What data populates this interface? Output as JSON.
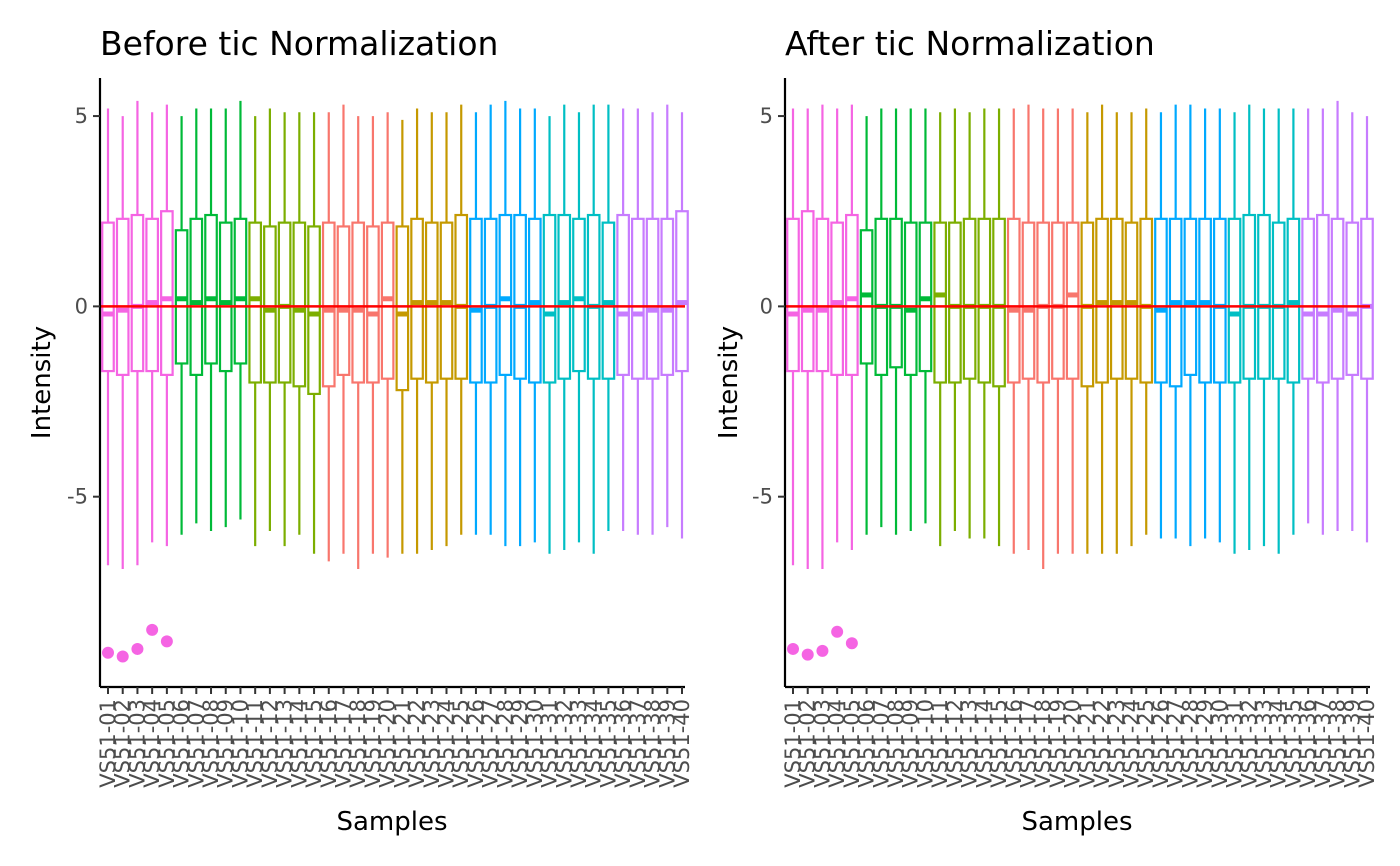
{
  "chart_data": [
    {
      "type": "boxplot",
      "title": "Before tic Normalization",
      "xlabel": "Samples",
      "ylabel": "Intensity",
      "ylim": [
        -10,
        6
      ],
      "yticks": [
        -5,
        0,
        5
      ],
      "ytick_labels": [
        "-5",
        "0",
        "5"
      ],
      "reference_line": {
        "y": 0,
        "color": "#ff0000"
      },
      "grid": false,
      "samples": [
        "VS51-01",
        "VS51-02",
        "VS51-03",
        "VS51-04",
        "VS51-05",
        "VS51-06",
        "VS51-07",
        "VS51-08",
        "VS51-09",
        "VS51-10",
        "VS51-11",
        "VS51-12",
        "VS51-13",
        "VS51-14",
        "VS51-15",
        "VS51-16",
        "VS51-17",
        "VS51-18",
        "VS51-19",
        "VS51-20",
        "VS51-21",
        "VS51-22",
        "VS51-23",
        "VS51-24",
        "VS51-25",
        "VS51-26",
        "VS51-27",
        "VS51-28",
        "VS51-29",
        "VS51-30",
        "VS51-31",
        "VS51-32",
        "VS51-33",
        "VS51-34",
        "VS51-35",
        "VS51-36",
        "VS51-37",
        "VS51-38",
        "VS51-39",
        "VS51-40"
      ],
      "box_colors": [
        "#f564e3",
        "#f564e3",
        "#f564e3",
        "#f564e3",
        "#f564e3",
        "#00ba38",
        "#00ba38",
        "#00ba38",
        "#00ba38",
        "#00ba38",
        "#7cae00",
        "#7cae00",
        "#7cae00",
        "#7cae00",
        "#7cae00",
        "#f8766d",
        "#f8766d",
        "#f8766d",
        "#f8766d",
        "#f8766d",
        "#c59900",
        "#c59900",
        "#c59900",
        "#c59900",
        "#c59900",
        "#00a9ff",
        "#00a9ff",
        "#00a9ff",
        "#00a9ff",
        "#00a9ff",
        "#00bfc4",
        "#00bfc4",
        "#00bfc4",
        "#00bfc4",
        "#00bfc4",
        "#c77cff",
        "#c77cff",
        "#c77cff",
        "#c77cff",
        "#c77cff"
      ],
      "upper_whisker": [
        5.2,
        5.0,
        5.4,
        5.1,
        5.3,
        5.0,
        5.2,
        5.2,
        5.2,
        5.4,
        5.0,
        5.2,
        5.1,
        5.1,
        5.1,
        5.1,
        5.3,
        5.0,
        5.0,
        5.1,
        4.9,
        5.2,
        5.1,
        5.1,
        5.3,
        5.1,
        5.3,
        5.4,
        5.2,
        5.2,
        5.0,
        5.3,
        5.1,
        5.3,
        5.3,
        5.2,
        5.2,
        5.1,
        5.3,
        5.1
      ],
      "q3": [
        2.2,
        2.3,
        2.4,
        2.3,
        2.5,
        2.0,
        2.3,
        2.4,
        2.2,
        2.3,
        2.2,
        2.1,
        2.2,
        2.2,
        2.1,
        2.2,
        2.1,
        2.2,
        2.1,
        2.2,
        2.1,
        2.3,
        2.2,
        2.2,
        2.4,
        2.3,
        2.3,
        2.4,
        2.4,
        2.3,
        2.4,
        2.4,
        2.3,
        2.4,
        2.2,
        2.4,
        2.3,
        2.3,
        2.3,
        2.5
      ],
      "median": [
        -0.2,
        -0.1,
        0.0,
        0.1,
        0.2,
        0.2,
        0.1,
        0.2,
        0.1,
        0.2,
        0.2,
        -0.1,
        0.0,
        -0.1,
        -0.2,
        -0.1,
        -0.1,
        -0.1,
        -0.2,
        0.2,
        -0.2,
        0.1,
        0.1,
        0.1,
        0.0,
        -0.1,
        0.0,
        0.2,
        0.0,
        0.1,
        -0.2,
        0.1,
        0.2,
        0.0,
        0.1,
        -0.2,
        -0.2,
        -0.1,
        -0.1,
        0.1
      ],
      "q1": [
        -1.7,
        -1.8,
        -1.7,
        -1.7,
        -1.8,
        -1.5,
        -1.8,
        -1.5,
        -1.7,
        -1.5,
        -2.0,
        -2.0,
        -2.0,
        -2.1,
        -2.3,
        -2.1,
        -1.8,
        -2.0,
        -2.0,
        -1.9,
        -2.2,
        -1.9,
        -2.0,
        -1.9,
        -1.9,
        -2.0,
        -2.0,
        -1.8,
        -1.9,
        -2.0,
        -2.0,
        -1.9,
        -1.7,
        -1.9,
        -1.9,
        -1.8,
        -1.9,
        -1.9,
        -1.8,
        -1.7
      ],
      "lower_whisker": [
        -6.8,
        -6.9,
        -6.8,
        -6.2,
        -6.3,
        -6.0,
        -5.7,
        -5.9,
        -5.8,
        -5.6,
        -6.3,
        -5.9,
        -6.3,
        -6.0,
        -6.5,
        -6.7,
        -6.5,
        -6.9,
        -6.5,
        -6.6,
        -6.5,
        -6.5,
        -6.4,
        -6.3,
        -6.0,
        -6.0,
        -6.0,
        -6.3,
        -6.3,
        -6.2,
        -6.5,
        -6.4,
        -6.2,
        -6.5,
        -5.9,
        -5.9,
        -6.0,
        -6.0,
        -5.8,
        -6.1
      ],
      "outliers": [
        {
          "sample": "VS51-01",
          "y": -9.1
        },
        {
          "sample": "VS51-02",
          "y": -9.2
        },
        {
          "sample": "VS51-03",
          "y": -9.0
        },
        {
          "sample": "VS51-04",
          "y": -8.5
        },
        {
          "sample": "VS51-05",
          "y": -8.8
        }
      ]
    },
    {
      "type": "boxplot",
      "title": "After tic Normalization",
      "xlabel": "Samples",
      "ylabel": "Intensity",
      "ylim": [
        -10,
        6
      ],
      "yticks": [
        -5,
        0,
        5
      ],
      "ytick_labels": [
        "-5",
        "0",
        "5"
      ],
      "reference_line": {
        "y": 0,
        "color": "#ff0000"
      },
      "grid": false,
      "samples": [
        "VS51-01",
        "VS51-02",
        "VS51-03",
        "VS51-04",
        "VS51-05",
        "VS51-06",
        "VS51-07",
        "VS51-08",
        "VS51-09",
        "VS51-10",
        "VS51-11",
        "VS51-12",
        "VS51-13",
        "VS51-14",
        "VS51-15",
        "VS51-16",
        "VS51-17",
        "VS51-18",
        "VS51-19",
        "VS51-20",
        "VS51-21",
        "VS51-22",
        "VS51-23",
        "VS51-24",
        "VS51-25",
        "VS51-26",
        "VS51-27",
        "VS51-28",
        "VS51-29",
        "VS51-30",
        "VS51-31",
        "VS51-32",
        "VS51-33",
        "VS51-34",
        "VS51-35",
        "VS51-36",
        "VS51-37",
        "VS51-38",
        "VS51-39",
        "VS51-40"
      ],
      "box_colors": [
        "#f564e3",
        "#f564e3",
        "#f564e3",
        "#f564e3",
        "#f564e3",
        "#00ba38",
        "#00ba38",
        "#00ba38",
        "#00ba38",
        "#00ba38",
        "#7cae00",
        "#7cae00",
        "#7cae00",
        "#7cae00",
        "#7cae00",
        "#f8766d",
        "#f8766d",
        "#f8766d",
        "#f8766d",
        "#f8766d",
        "#c59900",
        "#c59900",
        "#c59900",
        "#c59900",
        "#c59900",
        "#00a9ff",
        "#00a9ff",
        "#00a9ff",
        "#00a9ff",
        "#00a9ff",
        "#00bfc4",
        "#00bfc4",
        "#00bfc4",
        "#00bfc4",
        "#00bfc4",
        "#c77cff",
        "#c77cff",
        "#c77cff",
        "#c77cff",
        "#c77cff"
      ],
      "upper_whisker": [
        5.2,
        5.2,
        5.3,
        5.2,
        5.3,
        5.0,
        5.2,
        5.2,
        5.2,
        5.2,
        5.1,
        5.2,
        5.1,
        5.2,
        5.2,
        5.2,
        5.3,
        5.2,
        5.2,
        5.2,
        5.1,
        5.3,
        5.1,
        5.1,
        5.2,
        5.1,
        5.3,
        5.3,
        5.2,
        5.2,
        5.1,
        5.3,
        5.2,
        5.2,
        5.2,
        5.2,
        5.2,
        5.4,
        5.1,
        5.0
      ],
      "q3": [
        2.3,
        2.5,
        2.3,
        2.2,
        2.4,
        2.0,
        2.3,
        2.3,
        2.2,
        2.2,
        2.2,
        2.2,
        2.3,
        2.3,
        2.3,
        2.3,
        2.2,
        2.2,
        2.2,
        2.2,
        2.2,
        2.3,
        2.3,
        2.2,
        2.3,
        2.3,
        2.3,
        2.3,
        2.3,
        2.3,
        2.3,
        2.4,
        2.4,
        2.2,
        2.3,
        2.3,
        2.4,
        2.3,
        2.2,
        2.3
      ],
      "median": [
        -0.2,
        -0.1,
        -0.1,
        0.1,
        0.2,
        0.3,
        0.0,
        0.0,
        -0.1,
        0.2,
        0.3,
        0.0,
        0.0,
        0.0,
        0.0,
        -0.1,
        -0.1,
        0.0,
        0.0,
        0.3,
        0.0,
        0.1,
        0.1,
        0.1,
        0.0,
        -0.1,
        0.1,
        0.1,
        0.1,
        0.0,
        -0.2,
        0.0,
        0.0,
        0.0,
        0.1,
        -0.2,
        -0.2,
        -0.1,
        -0.2,
        0.0
      ],
      "q1": [
        -1.7,
        -1.7,
        -1.7,
        -1.8,
        -1.8,
        -1.5,
        -1.8,
        -1.6,
        -1.8,
        -1.7,
        -2.0,
        -2.0,
        -1.9,
        -2.0,
        -2.1,
        -2.0,
        -1.9,
        -2.0,
        -1.9,
        -1.9,
        -2.1,
        -2.0,
        -1.9,
        -1.9,
        -2.0,
        -2.0,
        -2.1,
        -1.8,
        -2.0,
        -2.0,
        -2.0,
        -1.9,
        -1.9,
        -1.9,
        -2.0,
        -1.9,
        -2.0,
        -1.9,
        -1.8,
        -1.9
      ],
      "lower_whisker": [
        -6.8,
        -6.9,
        -6.9,
        -6.2,
        -6.4,
        -6.0,
        -5.8,
        -6.0,
        -5.9,
        -5.7,
        -6.3,
        -5.9,
        -6.1,
        -6.1,
        -6.3,
        -6.5,
        -6.4,
        -6.9,
        -6.5,
        -6.5,
        -6.5,
        -6.5,
        -6.5,
        -6.3,
        -6.0,
        -6.1,
        -6.1,
        -6.3,
        -6.1,
        -6.2,
        -6.5,
        -6.4,
        -6.3,
        -6.5,
        -6.0,
        -5.7,
        -6.0,
        -5.9,
        -5.9,
        -6.2
      ],
      "outliers": [
        {
          "sample": "VS51-01",
          "y": -9.0
        },
        {
          "sample": "VS51-02",
          "y": -9.15
        },
        {
          "sample": "VS51-03",
          "y": -9.05
        },
        {
          "sample": "VS51-04",
          "y": -8.55
        },
        {
          "sample": "VS51-05",
          "y": -8.85
        }
      ]
    }
  ]
}
